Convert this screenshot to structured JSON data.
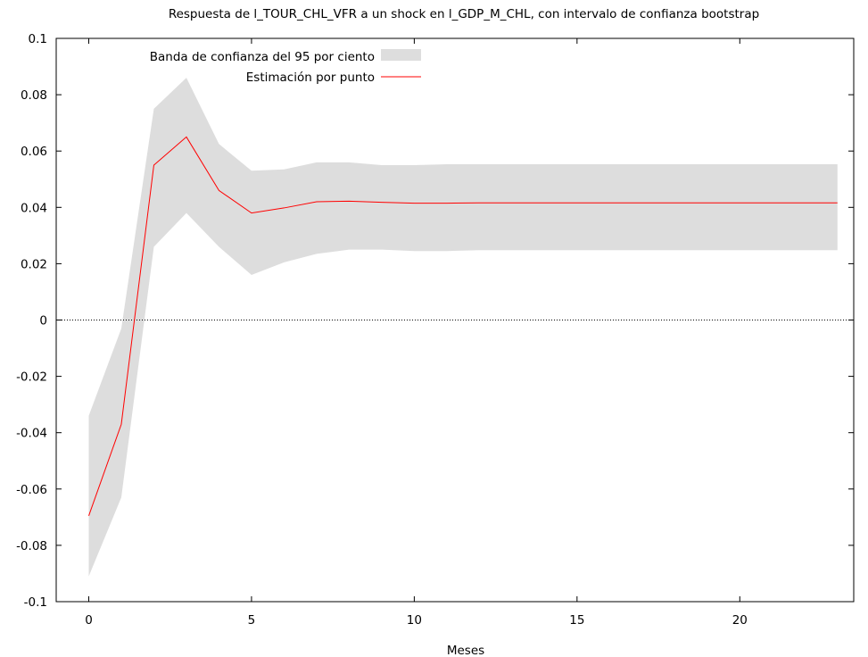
{
  "chart_data": {
    "type": "line",
    "title": "Respuesta de l_TOUR_CHL_VFR a un shock en l_GDP_M_CHL, con intervalo de confianza bootstrap",
    "xlabel": "Meses",
    "ylabel": "",
    "xlim": [
      -1,
      23.5
    ],
    "ylim": [
      -0.1,
      0.1
    ],
    "x_ticks": [
      0,
      5,
      10,
      15,
      20
    ],
    "x_tick_labels": [
      "0",
      "5",
      "10",
      "15",
      "20"
    ],
    "y_ticks": [
      -0.1,
      -0.08,
      -0.06,
      -0.04,
      -0.02,
      0,
      0.02,
      0.04,
      0.06,
      0.08,
      0.1
    ],
    "y_tick_labels": [
      "-0.1",
      "-0.08",
      "-0.06",
      "-0.04",
      "-0.02",
      "0",
      "0.02",
      "0.04",
      "0.06",
      "0.08",
      "0.1"
    ],
    "x": [
      0,
      1,
      2,
      3,
      4,
      5,
      6,
      7,
      8,
      9,
      10,
      11,
      12,
      13,
      14,
      15,
      16,
      17,
      18,
      19,
      20,
      21,
      22,
      23
    ],
    "series": [
      {
        "name": "Estimación por punto",
        "color": "#ff0000",
        "values": [
          -0.0695,
          -0.037,
          0.055,
          0.065,
          0.046,
          0.038,
          0.0398,
          0.042,
          0.0422,
          0.0418,
          0.0415,
          0.0415,
          0.0416,
          0.0416,
          0.0416,
          0.0416,
          0.0416,
          0.0416,
          0.0416,
          0.0416,
          0.0416,
          0.0416,
          0.0416,
          0.0416
        ]
      }
    ],
    "band": {
      "name": "Banda de confianza del 95 por ciento",
      "color": "#dddddd",
      "lower": [
        -0.091,
        -0.063,
        0.026,
        0.038,
        0.026,
        0.016,
        0.0205,
        0.0235,
        0.025,
        0.025,
        0.0245,
        0.0245,
        0.0248,
        0.0248,
        0.0248,
        0.0248,
        0.0248,
        0.0248,
        0.0248,
        0.0248,
        0.0248,
        0.0248,
        0.0248,
        0.0248
      ],
      "upper": [
        -0.034,
        -0.003,
        0.075,
        0.086,
        0.0625,
        0.053,
        0.0535,
        0.056,
        0.056,
        0.055,
        0.055,
        0.0553,
        0.0553,
        0.0553,
        0.0553,
        0.0553,
        0.0553,
        0.0553,
        0.0553,
        0.0553,
        0.0553,
        0.0553,
        0.0553,
        0.0553
      ]
    },
    "zero_line": true,
    "grid": false,
    "legend_position": "top-left"
  }
}
